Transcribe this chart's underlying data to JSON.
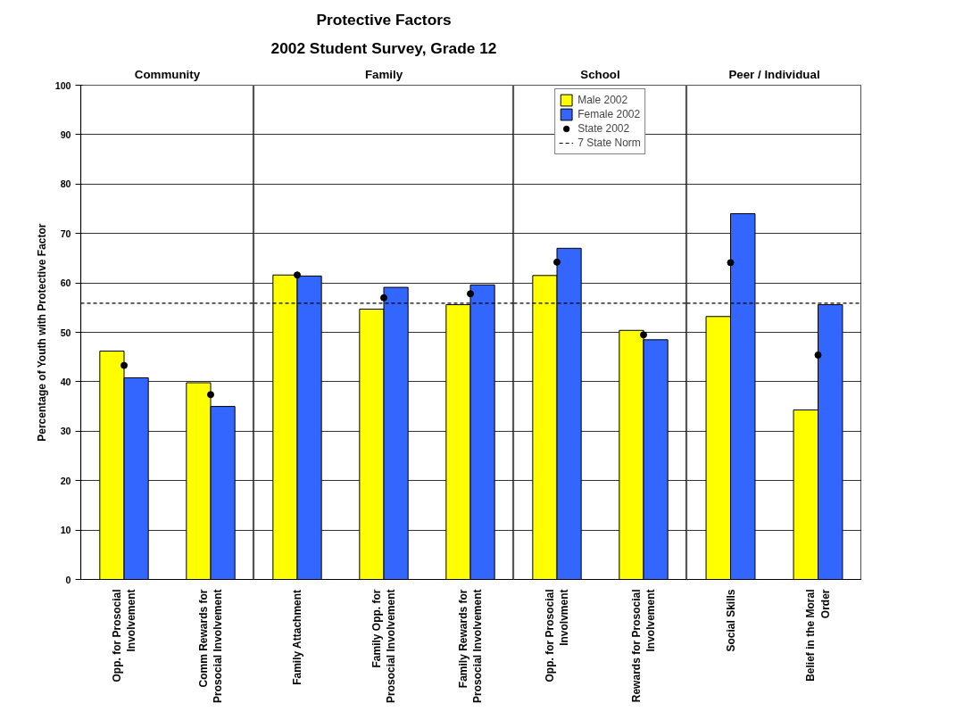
{
  "chart_data": [
    {
      "type": "bar",
      "x2label": "Community",
      "ylabel": "Percentage of Youth with Protective Factor",
      "categories": [
        "Opp. for Prosocial Involvement",
        "Comm Rewards for Prosocial Involvement"
      ],
      "series": [
        {
          "color": "#ffff00",
          "values": [
            46.2,
            39.8
          ]
        },
        {
          "color": "#3366ff",
          "values": [
            40.8,
            35.0
          ]
        },
        {
          "type": "scatter",
          "marker": "circle",
          "color": "#000000",
          "values": [
            43.3,
            37.4
          ]
        }
      ],
      "ref_lines": [
        {
          "axis": "y",
          "value": 55.9,
          "color": "#000000",
          "line_style": "dashed"
        }
      ],
      "ylim": [
        0,
        100
      ],
      "yticks": [
        0,
        10,
        20,
        30,
        40,
        50,
        60,
        70,
        80,
        90,
        100
      ],
      "grid": "y"
    },
    {
      "type": "bar",
      "title": "Protective Factors",
      "subtitle": "2002 Student Survey, Grade 12",
      "x2label": "Family",
      "categories": [
        "Family Attachment",
        "Family Opp. for Prosocial Involvement",
        "Family Rewards for Prosocial Involvement"
      ],
      "series": [
        {
          "color": "#ffff00",
          "values": [
            61.6,
            54.7,
            55.6
          ]
        },
        {
          "color": "#3366ff",
          "values": [
            61.4,
            59.1,
            59.6
          ]
        },
        {
          "type": "scatter",
          "marker": "circle",
          "color": "#000000",
          "values": [
            61.6,
            57.0,
            57.8
          ]
        }
      ],
      "ref_lines": [
        {
          "axis": "y",
          "value": 55.9,
          "color": "#000000",
          "line_style": "dashed"
        }
      ],
      "ylim": [
        0,
        100
      ],
      "yticks": [
        0,
        10,
        20,
        30,
        40,
        50,
        60,
        70,
        80,
        90,
        100
      ],
      "grid": "y",
      "tick_labels": "x"
    },
    {
      "type": "bar",
      "x2label": "School",
      "categories": [
        "Opp. for Prosocial Involvment",
        "Rewards for Prosocial Involvement"
      ],
      "series": [
        {
          "name": "Male 2002",
          "color": "#ffff00",
          "values": [
            61.5,
            50.4
          ]
        },
        {
          "name": "Female 2002",
          "color": "#3366ff",
          "values": [
            67.0,
            48.5
          ]
        },
        {
          "name": "State 2002",
          "type": "scatter",
          "marker": "circle",
          "color": "#000000",
          "values": [
            64.2,
            49.5
          ]
        }
      ],
      "ref_lines": [
        {
          "axis": "y",
          "value": 55.9,
          "label": "7 State Norm",
          "color": "#000000",
          "line_style": "dashed"
        }
      ],
      "ylim": [
        0,
        100
      ],
      "yticks": [
        0,
        10,
        20,
        30,
        40,
        50,
        60,
        70,
        80,
        90,
        100
      ],
      "grid": "y",
      "tick_labels": "x",
      "legend": "top"
    },
    {
      "type": "bar",
      "x2label": "Peer / Individual",
      "categories": [
        "Social Skills",
        "Belief in the Moral Order"
      ],
      "series": [
        {
          "color": "#ffff00",
          "values": [
            53.2,
            34.3
          ]
        },
        {
          "color": "#3366ff",
          "values": [
            74.0,
            55.6
          ]
        },
        {
          "type": "scatter",
          "marker": "circle",
          "color": "#000000",
          "values": [
            64.1,
            45.4
          ]
        }
      ],
      "ref_lines": [
        {
          "axis": "y",
          "value": 55.9,
          "color": "#000000",
          "line_style": "dashed"
        }
      ],
      "ylim": [
        0,
        100
      ],
      "yticks": [
        0,
        10,
        20,
        30,
        40,
        50,
        60,
        70,
        80,
        90,
        100
      ],
      "grid": "y",
      "tick_labels": "x"
    }
  ]
}
